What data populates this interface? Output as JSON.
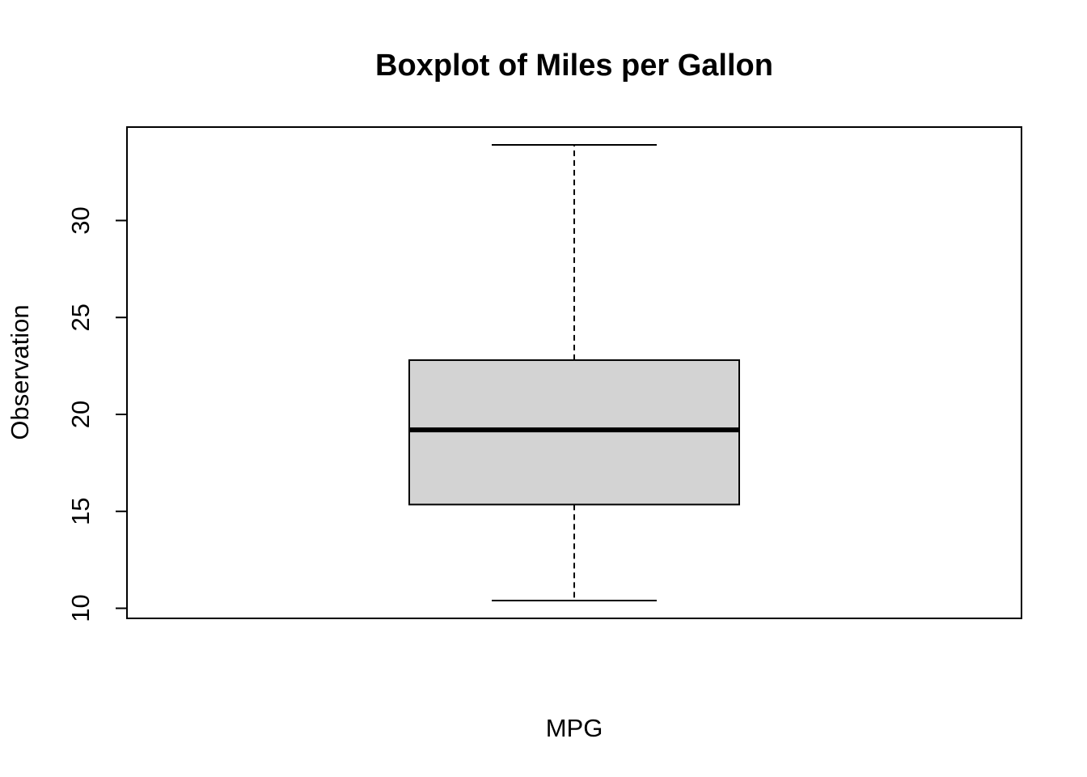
{
  "chart_data": {
    "type": "boxplot",
    "title": "Boxplot of Miles per Gallon",
    "xlabel": "MPG",
    "ylabel": "Observation",
    "ylim": [
      9.48,
      34.82
    ],
    "yticks": [
      10,
      15,
      20,
      25,
      30
    ],
    "ytick_labels": [
      "10",
      "15",
      "20",
      "25",
      "30"
    ],
    "grid": false,
    "series": [
      {
        "min": 10.4,
        "q1": 15.35,
        "median": 19.2,
        "q3": 22.8,
        "max": 33.9
      }
    ],
    "colors": {
      "box_fill": "#d3d3d3",
      "stroke": "#000000",
      "background": "#ffffff"
    }
  }
}
